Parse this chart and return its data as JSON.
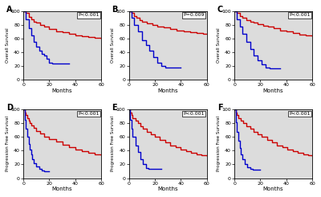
{
  "panels": [
    {
      "label": "A",
      "pvalue": "P<0.001",
      "ylabel": "Overall Survival",
      "xlabel": "Months",
      "red_steps": [
        [
          0,
          100
        ],
        [
          2,
          97
        ],
        [
          4,
          92
        ],
        [
          6,
          88
        ],
        [
          8,
          85
        ],
        [
          10,
          83
        ],
        [
          13,
          80
        ],
        [
          16,
          78
        ],
        [
          20,
          74
        ],
        [
          25,
          71
        ],
        [
          30,
          69
        ],
        [
          35,
          67
        ],
        [
          40,
          64
        ],
        [
          45,
          63
        ],
        [
          50,
          62
        ],
        [
          55,
          61
        ],
        [
          60,
          60
        ]
      ],
      "blue_steps": [
        [
          0,
          100
        ],
        [
          2,
          88
        ],
        [
          4,
          75
        ],
        [
          6,
          65
        ],
        [
          8,
          55
        ],
        [
          10,
          48
        ],
        [
          12,
          42
        ],
        [
          14,
          38
        ],
        [
          16,
          35
        ],
        [
          18,
          30
        ],
        [
          20,
          25
        ],
        [
          22,
          23
        ],
        [
          25,
          23
        ],
        [
          35,
          23
        ]
      ]
    },
    {
      "label": "B",
      "pvalue": "P=0.009",
      "ylabel": "Overall Survival",
      "xlabel": "Months",
      "red_steps": [
        [
          0,
          100
        ],
        [
          2,
          97
        ],
        [
          4,
          93
        ],
        [
          6,
          90
        ],
        [
          8,
          87
        ],
        [
          10,
          85
        ],
        [
          14,
          82
        ],
        [
          18,
          80
        ],
        [
          22,
          78
        ],
        [
          27,
          76
        ],
        [
          32,
          74
        ],
        [
          37,
          72
        ],
        [
          42,
          70
        ],
        [
          47,
          69
        ],
        [
          52,
          68
        ],
        [
          57,
          67
        ],
        [
          60,
          67
        ]
      ],
      "blue_steps": [
        [
          0,
          100
        ],
        [
          2,
          90
        ],
        [
          4,
          80
        ],
        [
          7,
          70
        ],
        [
          10,
          58
        ],
        [
          13,
          50
        ],
        [
          16,
          42
        ],
        [
          19,
          33
        ],
        [
          22,
          25
        ],
        [
          25,
          20
        ],
        [
          28,
          18
        ],
        [
          30,
          18
        ],
        [
          35,
          18
        ],
        [
          40,
          18
        ]
      ]
    },
    {
      "label": "C",
      "pvalue": "P<0.001",
      "ylabel": "Overall Survival",
      "xlabel": "Months",
      "red_steps": [
        [
          0,
          100
        ],
        [
          2,
          97
        ],
        [
          4,
          93
        ],
        [
          6,
          90
        ],
        [
          9,
          87
        ],
        [
          12,
          85
        ],
        [
          15,
          83
        ],
        [
          18,
          81
        ],
        [
          22,
          79
        ],
        [
          26,
          77
        ],
        [
          30,
          75
        ],
        [
          35,
          72
        ],
        [
          40,
          70
        ],
        [
          45,
          68
        ],
        [
          50,
          66
        ],
        [
          55,
          64
        ],
        [
          60,
          63
        ]
      ],
      "blue_steps": [
        [
          0,
          100
        ],
        [
          2,
          88
        ],
        [
          4,
          78
        ],
        [
          6,
          67
        ],
        [
          9,
          55
        ],
        [
          12,
          45
        ],
        [
          15,
          35
        ],
        [
          18,
          28
        ],
        [
          21,
          22
        ],
        [
          24,
          18
        ],
        [
          27,
          17
        ],
        [
          30,
          17
        ],
        [
          35,
          17
        ]
      ]
    },
    {
      "label": "D",
      "pvalue": "P<0.001",
      "ylabel": "Progression Free Survival",
      "xlabel": "Months",
      "red_steps": [
        [
          0,
          100
        ],
        [
          1,
          96
        ],
        [
          2,
          92
        ],
        [
          3,
          88
        ],
        [
          4,
          84
        ],
        [
          5,
          80
        ],
        [
          6,
          77
        ],
        [
          8,
          73
        ],
        [
          10,
          69
        ],
        [
          13,
          65
        ],
        [
          16,
          61
        ],
        [
          20,
          57
        ],
        [
          25,
          53
        ],
        [
          30,
          49
        ],
        [
          35,
          45
        ],
        [
          40,
          42
        ],
        [
          45,
          39
        ],
        [
          50,
          37
        ],
        [
          55,
          35
        ],
        [
          60,
          33
        ]
      ],
      "blue_steps": [
        [
          0,
          100
        ],
        [
          1,
          85
        ],
        [
          2,
          72
        ],
        [
          3,
          60
        ],
        [
          4,
          50
        ],
        [
          5,
          42
        ],
        [
          6,
          35
        ],
        [
          7,
          28
        ],
        [
          8,
          22
        ],
        [
          10,
          17
        ],
        [
          12,
          13
        ],
        [
          14,
          11
        ],
        [
          16,
          10
        ],
        [
          18,
          10
        ],
        [
          20,
          10
        ]
      ]
    },
    {
      "label": "E",
      "pvalue": "P<0.001",
      "ylabel": "Progression Free Survival",
      "xlabel": "Months",
      "red_steps": [
        [
          0,
          100
        ],
        [
          1,
          96
        ],
        [
          2,
          92
        ],
        [
          3,
          88
        ],
        [
          5,
          84
        ],
        [
          7,
          80
        ],
        [
          9,
          76
        ],
        [
          11,
          72
        ],
        [
          14,
          68
        ],
        [
          17,
          64
        ],
        [
          20,
          60
        ],
        [
          24,
          56
        ],
        [
          28,
          52
        ],
        [
          32,
          48
        ],
        [
          36,
          45
        ],
        [
          40,
          42
        ],
        [
          44,
          39
        ],
        [
          48,
          37
        ],
        [
          52,
          35
        ],
        [
          56,
          33
        ],
        [
          60,
          32
        ]
      ],
      "blue_steps": [
        [
          0,
          100
        ],
        [
          1,
          85
        ],
        [
          2,
          72
        ],
        [
          3,
          60
        ],
        [
          5,
          48
        ],
        [
          7,
          38
        ],
        [
          9,
          28
        ],
        [
          11,
          20
        ],
        [
          13,
          15
        ],
        [
          15,
          13
        ],
        [
          17,
          13
        ],
        [
          20,
          13
        ],
        [
          25,
          13
        ]
      ]
    },
    {
      "label": "F",
      "pvalue": "P<0.001",
      "ylabel": "Progression Free Survival",
      "xlabel": "Months",
      "red_steps": [
        [
          0,
          100
        ],
        [
          1,
          96
        ],
        [
          2,
          92
        ],
        [
          3,
          88
        ],
        [
          5,
          84
        ],
        [
          7,
          80
        ],
        [
          9,
          76
        ],
        [
          12,
          72
        ],
        [
          15,
          68
        ],
        [
          18,
          64
        ],
        [
          21,
          60
        ],
        [
          25,
          56
        ],
        [
          29,
          52
        ],
        [
          33,
          48
        ],
        [
          37,
          45
        ],
        [
          41,
          42
        ],
        [
          45,
          39
        ],
        [
          49,
          37
        ],
        [
          53,
          35
        ],
        [
          57,
          33
        ],
        [
          60,
          32
        ]
      ],
      "blue_steps": [
        [
          0,
          100
        ],
        [
          1,
          82
        ],
        [
          2,
          68
        ],
        [
          3,
          55
        ],
        [
          4,
          44
        ],
        [
          5,
          35
        ],
        [
          6,
          27
        ],
        [
          8,
          20
        ],
        [
          10,
          16
        ],
        [
          12,
          13
        ],
        [
          14,
          12
        ],
        [
          16,
          12
        ],
        [
          20,
          12
        ]
      ]
    }
  ],
  "red_color": "#CC0000",
  "blue_color": "#0000CC",
  "bg_color": "#DCDCDC",
  "xlim": [
    0,
    60
  ],
  "ylim": [
    0,
    100
  ],
  "xticks": [
    0,
    20,
    40,
    60
  ],
  "yticks": [
    0,
    20,
    40,
    60,
    80,
    100
  ]
}
